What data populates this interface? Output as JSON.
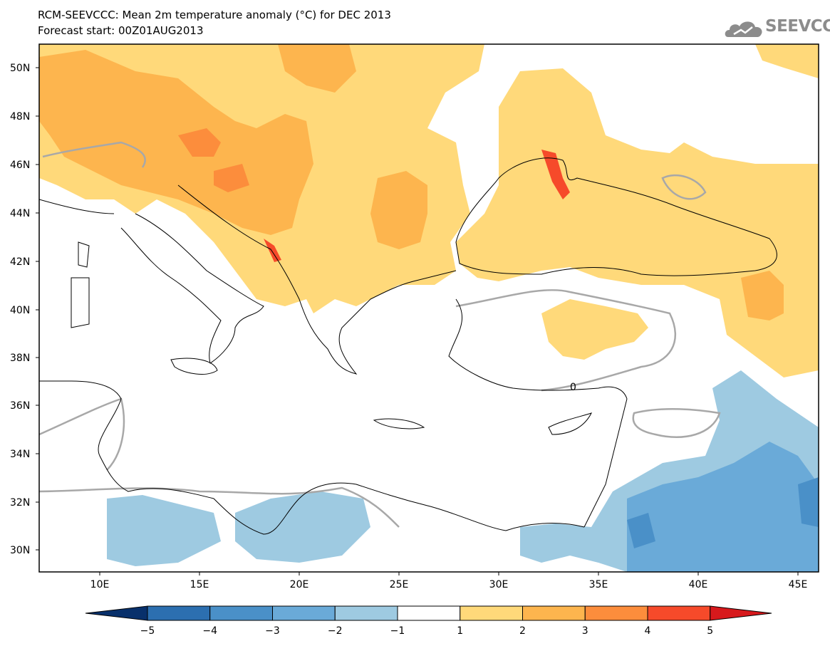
{
  "title": "RCM-SEEVCCC: Mean 2m temperature anomaly (°C) for DEC 2013",
  "subtitle": "Forecast start: 00Z01AUG2013",
  "logo_text": "SEEVCCC",
  "lat_ticks": [
    "50N",
    "48N",
    "46N",
    "44N",
    "42N",
    "40N",
    "38N",
    "36N",
    "34N",
    "32N",
    "30N"
  ],
  "lon_ticks": [
    "10E",
    "15E",
    "20E",
    "25E",
    "30E",
    "35E",
    "40E",
    "45E"
  ],
  "contour_label": "0",
  "colorbar": {
    "labels": [
      "−5",
      "−4",
      "−3",
      "−2",
      "−1",
      "1",
      "2",
      "3",
      "4",
      "5"
    ],
    "colors": [
      "#08306b",
      "#2c6fb0",
      "#4a90c8",
      "#6aaad8",
      "#9ecae1",
      "#ffffff",
      "#ffd97a",
      "#fdb54e",
      "#fc8d3c",
      "#f64a2a",
      "#d7191c"
    ]
  }
}
